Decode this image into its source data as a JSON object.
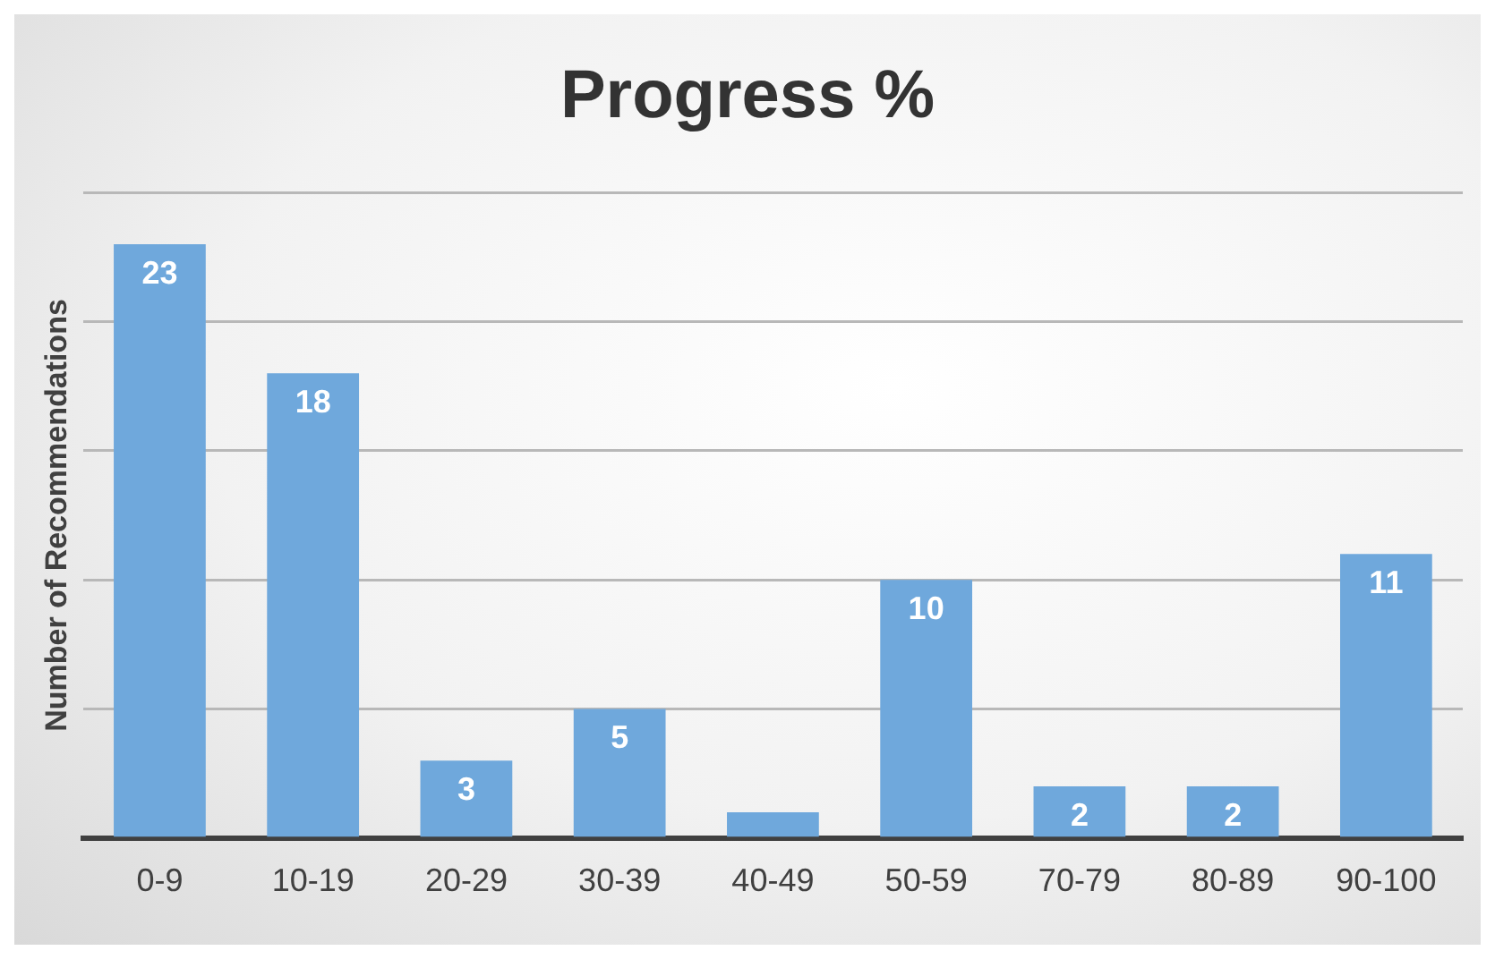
{
  "chart_data": {
    "type": "bar",
    "title": "Progress %",
    "ylabel": "Number of Recommendations",
    "categories": [
      "0-9",
      "10-19",
      "20-29",
      "30-39",
      "40-49",
      "50-59",
      "70-79",
      "80-89",
      "90-100"
    ],
    "values": [
      23,
      18,
      3,
      5,
      1,
      10,
      2,
      2,
      11
    ],
    "value_labels": [
      "23",
      "18",
      "3",
      "5",
      null,
      "10",
      "2",
      "2",
      "11"
    ],
    "color": "#6fa8dc",
    "tick_labels": "x",
    "grid": "y",
    "legend": false
  }
}
